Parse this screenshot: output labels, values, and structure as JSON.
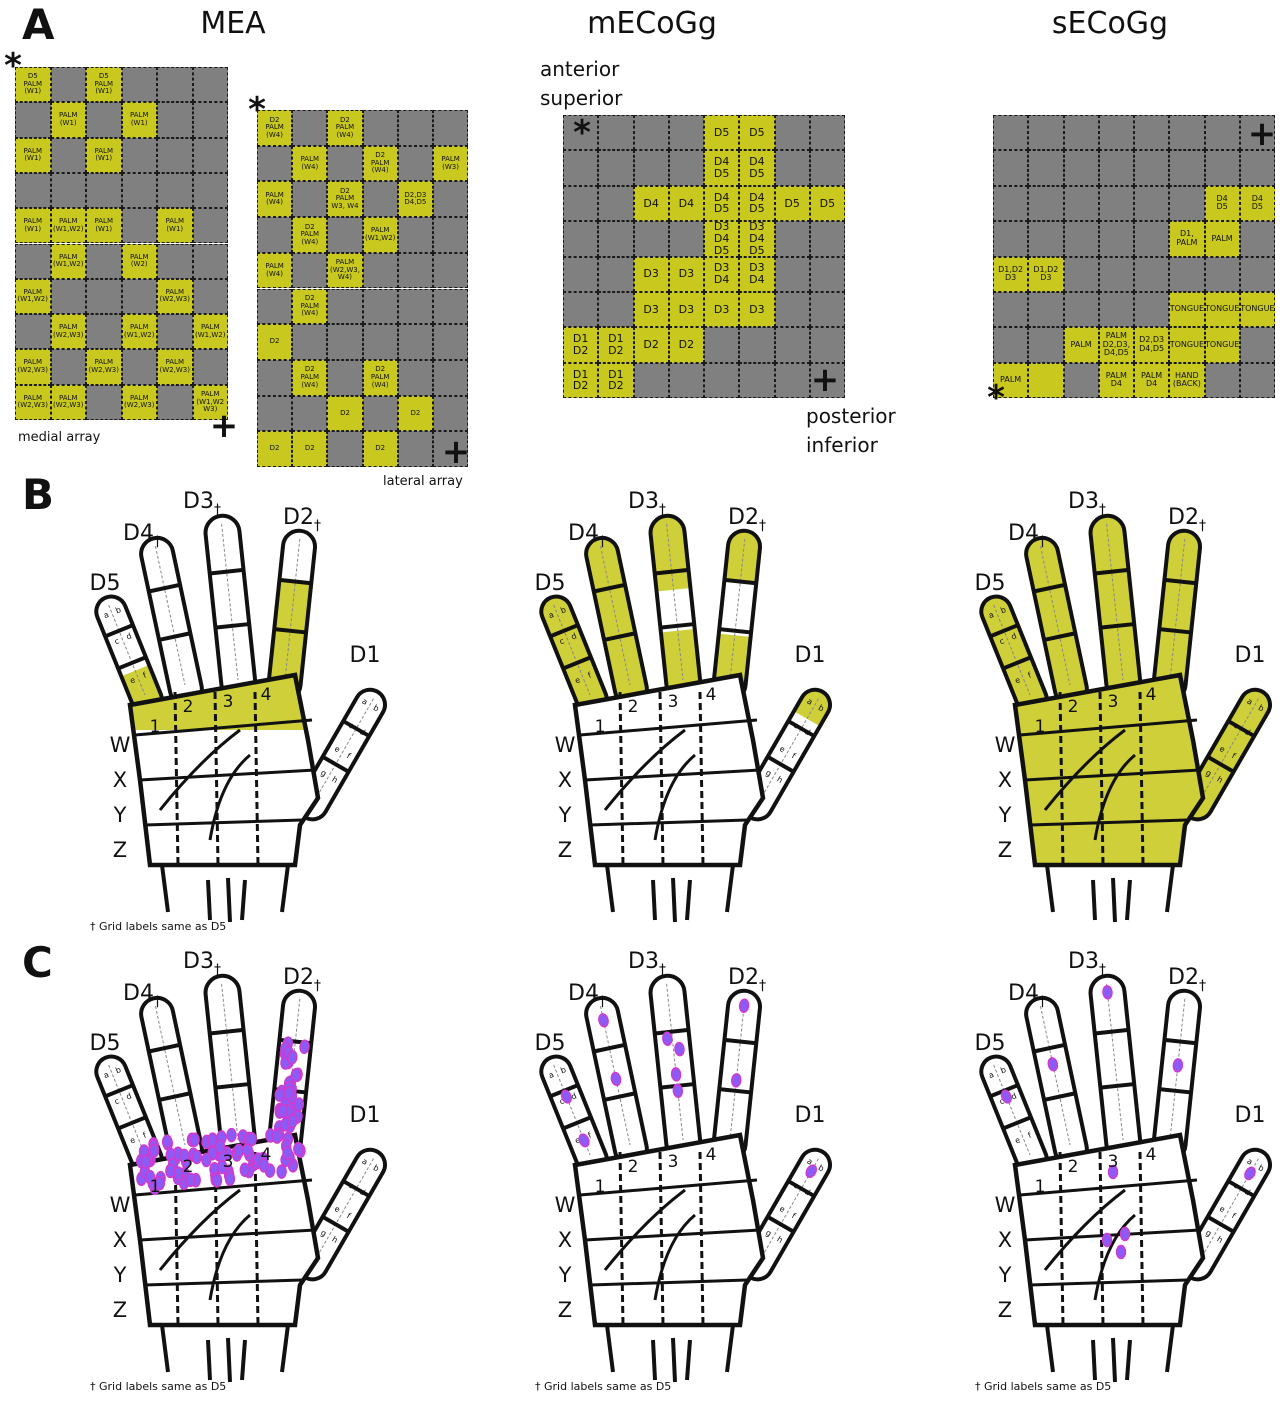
{
  "panel_labels": [
    "A",
    "B",
    "C"
  ],
  "column_titles": [
    "MEA",
    "mECoGg",
    "sECoGg"
  ],
  "grids": [
    {
      "captions": [
        "medial array"
      ],
      "marks": [
        "*",
        "+"
      ],
      "rows": [
        [
          "D5\nPALM\n(W1)",
          null,
          "D5\nPALM\n(W1)",
          null,
          null,
          null
        ],
        [
          null,
          "PALM\n(W1)",
          null,
          "PALM\n(W1)",
          null,
          null
        ],
        [
          "PALM\n(W1)",
          null,
          "PALM\n(W1)",
          null,
          null,
          null
        ],
        [
          null,
          null,
          null,
          null,
          null,
          null
        ],
        [
          "PALM\n(W1)",
          "PALM\n(W1,W2)",
          "PALM\n(W1)",
          null,
          "PALM\n(W1)",
          null
        ],
        [
          null,
          "PALM\n(W1,W2)",
          null,
          "PALM\n(W2)",
          null,
          null
        ],
        [
          "PALM\n(W1,W2)",
          null,
          null,
          null,
          "PALM\n(W2,W3)",
          null
        ],
        [
          null,
          "PALM\n(W2,W3)",
          null,
          "PALM\n(W1,W2)",
          null,
          "PALM\n(W1,W2)"
        ],
        [
          "PALM\n(W2,W3)",
          null,
          "PALM\n(W2,W3)",
          null,
          "PALM\n(W2,W3)",
          null
        ],
        [
          "PALM\n(W2,W3)",
          "PALM\n(W2,W3)",
          null,
          "PALM\n(W2,W3)",
          null,
          "PALM\n(W1,W2\nW3)"
        ]
      ]
    },
    {
      "captions": [
        "lateral array"
      ],
      "marks": [
        "*",
        "+"
      ],
      "rows": [
        [
          "D2\nPALM\n(W4)",
          null,
          "D2\nPALM\n(W4)",
          null,
          null,
          null
        ],
        [
          null,
          "PALM\n(W4)",
          null,
          "D2\nPALM\n(W4)",
          null,
          "PALM\n(W3)"
        ],
        [
          "PALM\n(W4)",
          null,
          "D2\nPALM\nW3, W4",
          null,
          "D2,D3\nD4,D5",
          null
        ],
        [
          null,
          "D2\nPALM\n(W4)",
          null,
          "PALM\n(W1,W2)",
          null,
          null
        ],
        [
          "PALM\n(W4)",
          null,
          "PALM\n(W2,W3,\nW4)",
          null,
          null,
          null
        ],
        [
          null,
          "D2\nPALM\n(W4)",
          null,
          null,
          null,
          null
        ],
        [
          "D2",
          null,
          null,
          null,
          null,
          null
        ],
        [
          null,
          "D2\nPALM\n(W4)",
          null,
          "D2\nPALM\n(W4)",
          null,
          null
        ],
        [
          null,
          null,
          "D2",
          null,
          "D2",
          null
        ],
        [
          "D2",
          "D2",
          null,
          "D2",
          null,
          null
        ]
      ]
    },
    {
      "captions": [
        "anterior\nsuperior",
        "posterior\ninferior"
      ],
      "marks": [
        "*",
        "+"
      ],
      "rows": [
        [
          null,
          null,
          null,
          null,
          "D5",
          "D5",
          null,
          null
        ],
        [
          null,
          null,
          null,
          null,
          "D4\nD5",
          "D4\nD5",
          null,
          null
        ],
        [
          null,
          null,
          "D4",
          "D4",
          "D4\nD5",
          "D4\nD5",
          "D5",
          "D5"
        ],
        [
          null,
          null,
          null,
          null,
          "D3\nD4\nD5",
          "D3\nD4\nD5",
          null,
          null
        ],
        [
          null,
          null,
          "D3",
          "D3",
          "D3\nD4",
          "D3\nD4",
          null,
          null
        ],
        [
          null,
          null,
          "D3",
          "D3",
          "D3",
          "D3",
          null,
          null
        ],
        [
          "D1\nD2",
          "D1\nD2",
          "D2",
          "D2",
          null,
          null,
          null,
          null
        ],
        [
          "D1\nD2",
          "D1\nD2",
          null,
          null,
          null,
          null,
          null,
          null
        ]
      ]
    },
    {
      "captions": [],
      "marks": [
        "+",
        "*"
      ],
      "rows": [
        [
          null,
          null,
          null,
          null,
          null,
          null,
          null,
          null
        ],
        [
          null,
          null,
          null,
          null,
          null,
          null,
          null,
          null
        ],
        [
          null,
          null,
          null,
          null,
          null,
          null,
          "D4\nD5",
          "D4\nD5"
        ],
        [
          null,
          null,
          null,
          null,
          null,
          "D1,\nPALM",
          "PALM",
          null
        ],
        [
          "D1,D2\nD3",
          "D1,D2\nD3",
          null,
          null,
          null,
          null,
          null,
          null
        ],
        [
          null,
          null,
          null,
          null,
          null,
          "TONGUE",
          "TONGUE",
          "TONGUE"
        ],
        [
          null,
          null,
          "PALM",
          "PALM\nD2,D3,\nD4,D5",
          "D2,D3\nD4,D5",
          "TONGUE",
          "TONGUE",
          null
        ],
        [
          "PALM",
          true,
          null,
          "PALM\nD4",
          "PALM\nD4",
          "HAND\n(BACK)",
          null,
          null
        ]
      ]
    }
  ],
  "hand": {
    "fingers": [
      {
        "name": "D5"
      },
      {
        "name": "D4",
        "note": "†"
      },
      {
        "name": "D3",
        "note": "†"
      },
      {
        "name": "D2",
        "note": "†"
      },
      {
        "name": "D1"
      }
    ],
    "palm_columns": [
      "1",
      "2",
      "3",
      "4"
    ],
    "palm_rows": [
      "W",
      "X",
      "Y",
      "Z"
    ],
    "segment_letters": [
      "a",
      "b",
      "c",
      "d",
      "e",
      "f",
      "g",
      "h"
    ],
    "footnote": "† Grid labels same as D5"
  }
}
